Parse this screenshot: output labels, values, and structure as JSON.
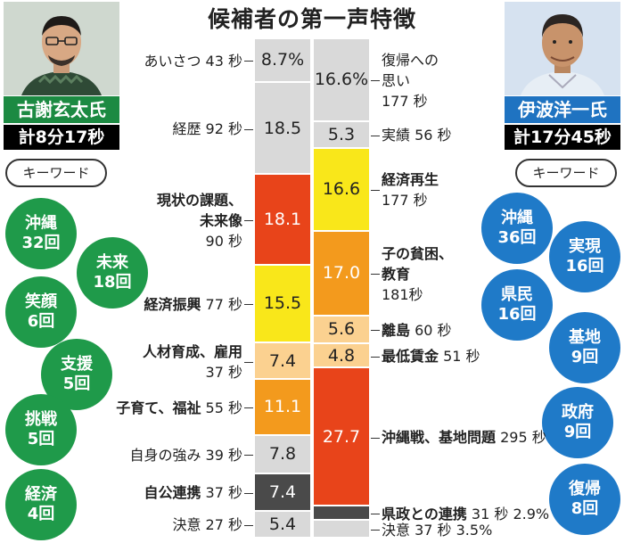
{
  "title": "候補者の第一声特徴",
  "left": {
    "name": "古謝玄太氏",
    "total": "計8分17秒",
    "keyword_title": "キーワード",
    "keywords": [
      {
        "word": "沖縄",
        "count": "32回"
      },
      {
        "word": "未来",
        "count": "18回"
      },
      {
        "word": "笑顔",
        "count": "6回"
      },
      {
        "word": "支援",
        "count": "5回"
      },
      {
        "word": "挑戦",
        "count": "5回"
      },
      {
        "word": "経済",
        "count": "4回"
      }
    ]
  },
  "right": {
    "name": "伊波洋一氏",
    "total": "計17分45秒",
    "keyword_title": "キーワード",
    "keywords": [
      {
        "word": "沖縄",
        "count": "36回"
      },
      {
        "word": "実現",
        "count": "16回"
      },
      {
        "word": "県民",
        "count": "16回"
      },
      {
        "word": "基地",
        "count": "9回"
      },
      {
        "word": "政府",
        "count": "9回"
      },
      {
        "word": "復帰",
        "count": "8回"
      }
    ]
  },
  "chart_data": {
    "type": "bar",
    "stacked": true,
    "orientation": "vertical",
    "series": [
      {
        "name": "古謝玄太氏",
        "segments": [
          {
            "topic": "あいさつ",
            "seconds_label": "43 秒",
            "seconds": 43,
            "percent": 8.7,
            "percent_label": "8.7%",
            "color": "#d9d9d9",
            "bold": false
          },
          {
            "topic": "経歴",
            "seconds_label": "92 秒",
            "seconds": 92,
            "percent": 18.5,
            "percent_label": "18.5",
            "color": "#d9d9d9",
            "bold": false
          },
          {
            "topic": "現状の課題、未来像",
            "topic_lines": [
              "現状の課題、",
              "未来像"
            ],
            "seconds_label": "90 秒",
            "seconds": 90,
            "percent": 18.1,
            "percent_label": "18.1",
            "color": "#e8441a",
            "text_color": "#ffffff",
            "bold": true
          },
          {
            "topic": "経済振興",
            "seconds_label": "77 秒",
            "seconds": 77,
            "percent": 15.5,
            "percent_label": "15.5",
            "color": "#f9e71a",
            "bold": true
          },
          {
            "topic": "人材育成、雇用",
            "seconds_label": "37 秒",
            "seconds": 37,
            "percent": 7.4,
            "percent_label": "7.4",
            "color": "#fbd190",
            "bold": true
          },
          {
            "topic": "子育て、福祉",
            "seconds_label": "55 秒",
            "seconds": 55,
            "percent": 11.1,
            "percent_label": "11.1",
            "color": "#f39a1d",
            "text_color": "#ffffff",
            "bold": true
          },
          {
            "topic": "自身の強み",
            "seconds_label": "39 秒",
            "seconds": 39,
            "percent": 7.8,
            "percent_label": "7.8",
            "color": "#d9d9d9",
            "bold": false
          },
          {
            "topic": "自公連携",
            "seconds_label": "37 秒",
            "seconds": 37,
            "percent": 7.4,
            "percent_label": "7.4",
            "color": "#4a4a4a",
            "text_color": "#ffffff",
            "bold": true
          },
          {
            "topic": "決意",
            "seconds_label": "27 秒",
            "seconds": 27,
            "percent": 5.4,
            "percent_label": "5.4",
            "color": "#d9d9d9",
            "bold": false
          }
        ]
      },
      {
        "name": "伊波洋一氏",
        "segments": [
          {
            "topic": "復帰への思い",
            "topic_lines": [
              "復帰への",
              "思い"
            ],
            "seconds_label": "177 秒",
            "seconds": 177,
            "percent": 16.6,
            "percent_label": "16.6%",
            "color": "#d9d9d9",
            "bold": false
          },
          {
            "topic": "実績",
            "seconds_label": "56 秒",
            "seconds": 56,
            "percent": 5.3,
            "percent_label": "5.3",
            "color": "#d9d9d9",
            "bold": false
          },
          {
            "topic": "経済再生",
            "seconds_label": "177 秒",
            "seconds": 177,
            "percent": 16.6,
            "percent_label": "16.6",
            "color": "#f9e71a",
            "bold": true
          },
          {
            "topic": "子の貧困、教育",
            "topic_lines": [
              "子の貧困、",
              "教育"
            ],
            "seconds_label": "181秒",
            "seconds": 181,
            "percent": 17.0,
            "percent_label": "17.0",
            "color": "#f39a1d",
            "text_color": "#ffffff",
            "bold": true
          },
          {
            "topic": "離島",
            "seconds_label": "60 秒",
            "seconds": 60,
            "percent": 5.6,
            "percent_label": "5.6",
            "color": "#fbd190",
            "bold": true
          },
          {
            "topic": "最低賃金",
            "seconds_label": "51 秒",
            "seconds": 51,
            "percent": 4.8,
            "percent_label": "4.8",
            "color": "#fbd190",
            "bold": true
          },
          {
            "topic": "沖縄戦、基地問題",
            "seconds_label": "295 秒",
            "seconds": 295,
            "percent": 27.7,
            "percent_label": "27.7",
            "color": "#e8441a",
            "text_color": "#ffffff",
            "bold": true
          },
          {
            "topic": "県政との連携",
            "seconds_label": "31 秒",
            "seconds": 31,
            "percent": 2.9,
            "percent_label": "2.9%",
            "color": "#4a4a4a",
            "bold": true
          },
          {
            "topic": "決意",
            "seconds_label": "37 秒",
            "seconds": 37,
            "percent": 3.5,
            "percent_label": "3.5%",
            "color": "#d9d9d9",
            "bold": false
          }
        ]
      }
    ]
  }
}
